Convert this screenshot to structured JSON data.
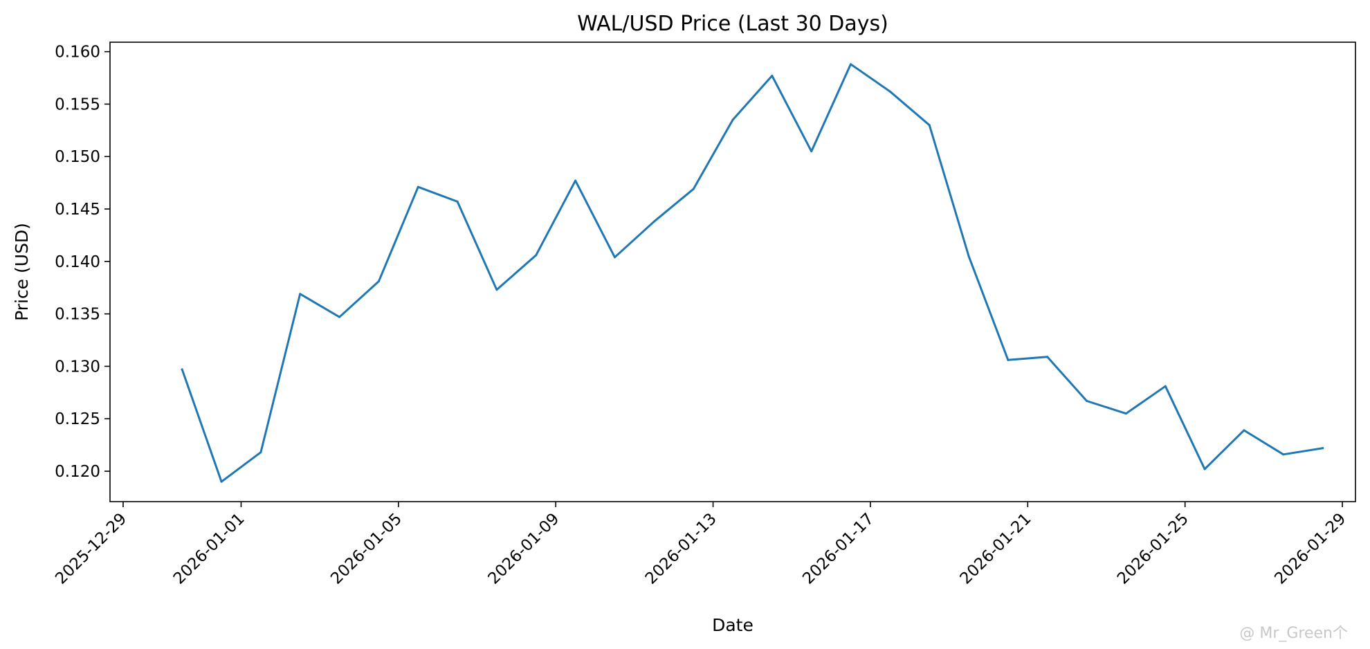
{
  "chart_data": {
    "type": "line",
    "title": "WAL/USD Price (Last 30 Days)",
    "xlabel": "Date",
    "ylabel": "Price (USD)",
    "x_ticks": [
      "2025-12-29",
      "2026-01-01",
      "2026-01-05",
      "2026-01-09",
      "2026-01-13",
      "2026-01-17",
      "2026-01-21",
      "2026-01-25",
      "2026-01-29"
    ],
    "y_ticks": [
      "0.120",
      "0.125",
      "0.130",
      "0.135",
      "0.140",
      "0.145",
      "0.150",
      "0.155",
      "0.160"
    ],
    "xlim": [
      "2025-12-28T16:00",
      "2026-01-29T08:00"
    ],
    "ylim": [
      0.1171,
      0.1609
    ],
    "grid": false,
    "series": [
      {
        "color": "#1f77b4",
        "points": [
          {
            "x": "2025-12-30T12:00",
            "y": 0.1297
          },
          {
            "x": "2025-12-31T12:00",
            "y": 0.119
          },
          {
            "x": "2026-01-01T12:00",
            "y": 0.1218
          },
          {
            "x": "2026-01-02T12:00",
            "y": 0.1369
          },
          {
            "x": "2026-01-03T12:00",
            "y": 0.1347
          },
          {
            "x": "2026-01-04T12:00",
            "y": 0.1381
          },
          {
            "x": "2026-01-05T12:00",
            "y": 0.1471
          },
          {
            "x": "2026-01-06T12:00",
            "y": 0.1457
          },
          {
            "x": "2026-01-07T12:00",
            "y": 0.1373
          },
          {
            "x": "2026-01-08T12:00",
            "y": 0.1406
          },
          {
            "x": "2026-01-09T12:00",
            "y": 0.1477
          },
          {
            "x": "2026-01-10T12:00",
            "y": 0.1404
          },
          {
            "x": "2026-01-11T12:00",
            "y": 0.1438
          },
          {
            "x": "2026-01-12T12:00",
            "y": 0.1469
          },
          {
            "x": "2026-01-13T12:00",
            "y": 0.1535
          },
          {
            "x": "2026-01-14T12:00",
            "y": 0.1577
          },
          {
            "x": "2026-01-15T12:00",
            "y": 0.1505
          },
          {
            "x": "2026-01-16T12:00",
            "y": 0.1588
          },
          {
            "x": "2026-01-17T12:00",
            "y": 0.1562
          },
          {
            "x": "2026-01-18T12:00",
            "y": 0.153
          },
          {
            "x": "2026-01-19T12:00",
            "y": 0.1405
          },
          {
            "x": "2026-01-20T12:00",
            "y": 0.1306
          },
          {
            "x": "2026-01-21T12:00",
            "y": 0.1309
          },
          {
            "x": "2026-01-22T12:00",
            "y": 0.1267
          },
          {
            "x": "2026-01-23T12:00",
            "y": 0.1255
          },
          {
            "x": "2026-01-24T12:00",
            "y": 0.1281
          },
          {
            "x": "2026-01-25T12:00",
            "y": 0.1202
          },
          {
            "x": "2026-01-26T12:00",
            "y": 0.1239
          },
          {
            "x": "2026-01-27T12:00",
            "y": 0.1216
          },
          {
            "x": "2026-01-28T12:00",
            "y": 0.1222
          }
        ]
      }
    ]
  },
  "watermark": "@ Mr_Green个"
}
